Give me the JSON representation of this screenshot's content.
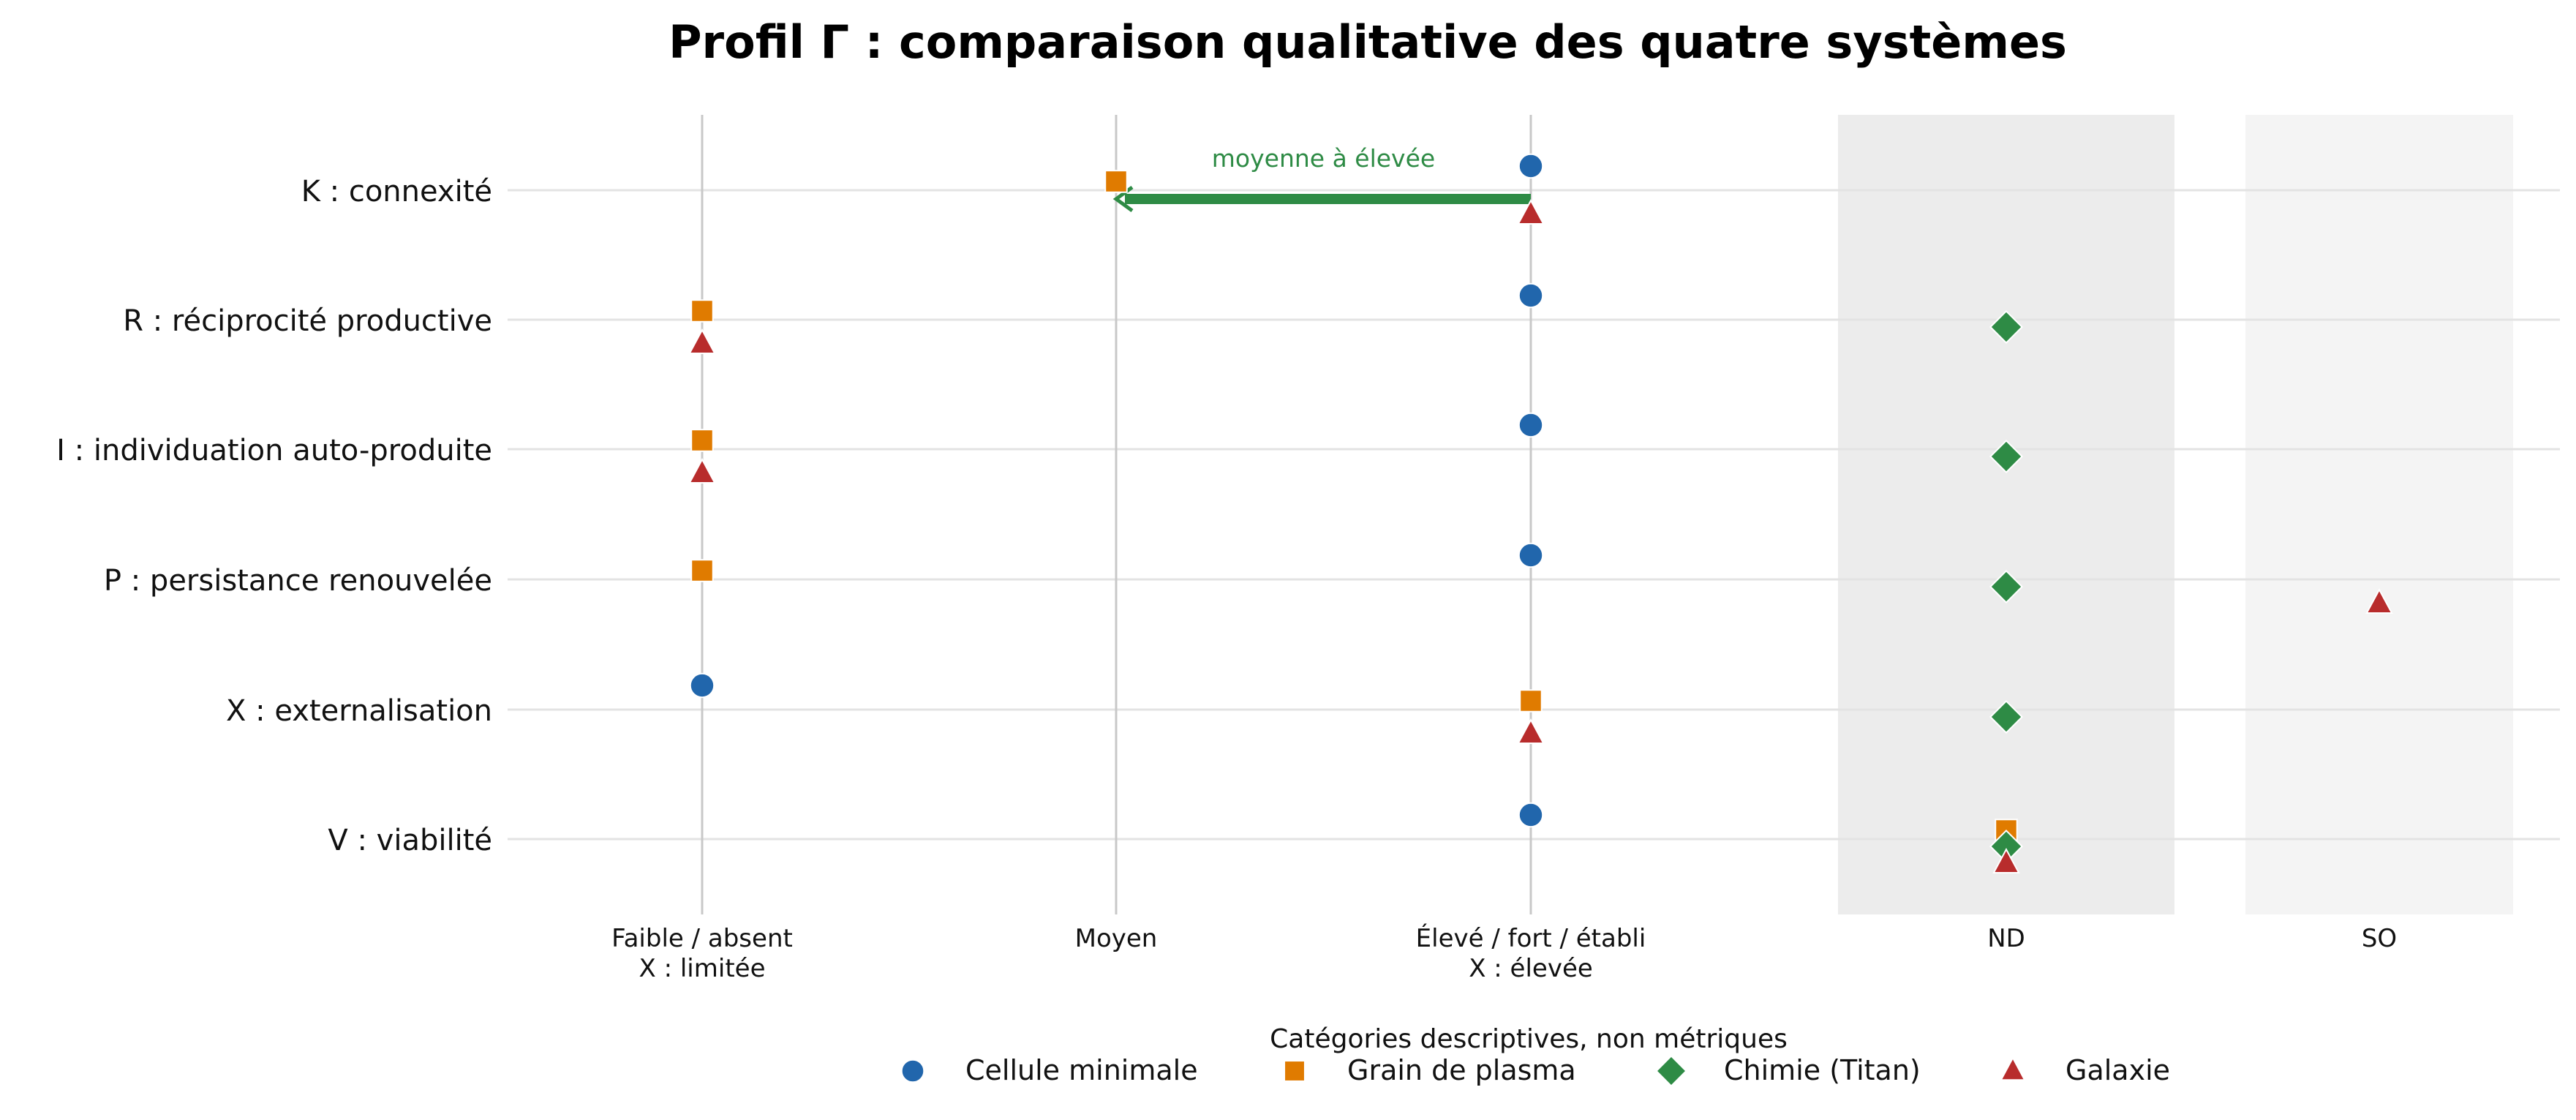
{
  "chart_data": {
    "type": "scatter",
    "title": "Profil Γ : comparaison qualitative des quatre systèmes",
    "x_categories": [
      [
        "Faible / absent",
        "X : limitée"
      ],
      [
        "Moyen"
      ],
      [
        "Élevé / fort / établi",
        "X : élevée"
      ],
      [
        "ND"
      ],
      [
        "SO"
      ]
    ],
    "y_categories": [
      "K : connexité",
      "R : réciprocité productive",
      "I : individuation auto-produite",
      "P : persistance renouvelée",
      "X : externalisation",
      "V : viabilité"
    ],
    "shaded_columns": [
      {
        "category": "ND",
        "color": "#ececec"
      },
      {
        "category": "SO",
        "color": "#f4f4f4"
      }
    ],
    "grid": true,
    "series": [
      {
        "name": "Cellule minimale",
        "marker": "circle",
        "color": "#2166ac",
        "points": [
          {
            "y": "K : connexité",
            "x": "Élevé / fort / établi"
          },
          {
            "y": "R : réciprocité productive",
            "x": "Élevé / fort / établi"
          },
          {
            "y": "I : individuation auto-produite",
            "x": "Élevé / fort / établi"
          },
          {
            "y": "P : persistance renouvelée",
            "x": "Élevé / fort / établi"
          },
          {
            "y": "X : externalisation",
            "x": "Faible / absent"
          },
          {
            "y": "V : viabilité",
            "x": "Élevé / fort / établi"
          }
        ]
      },
      {
        "name": "Grain de plasma",
        "marker": "square",
        "color": "#e07b00",
        "points": [
          {
            "y": "K : connexité",
            "x": "Moyen"
          },
          {
            "y": "R : réciprocité productive",
            "x": "Faible / absent"
          },
          {
            "y": "I : individuation auto-produite",
            "x": "Faible / absent"
          },
          {
            "y": "P : persistance renouvelée",
            "x": "Faible / absent"
          },
          {
            "y": "X : externalisation",
            "x": "Élevé / fort / établi"
          },
          {
            "y": "V : viabilité",
            "x": "ND"
          }
        ]
      },
      {
        "name": "Chimie (Titan)",
        "marker": "diamond",
        "color": "#2e8b45",
        "points": [
          {
            "y": "R : réciprocité productive",
            "x": "ND"
          },
          {
            "y": "I : individuation auto-produite",
            "x": "ND"
          },
          {
            "y": "P : persistance renouvelée",
            "x": "ND"
          },
          {
            "y": "X : externalisation",
            "x": "ND"
          },
          {
            "y": "V : viabilité",
            "x": "ND"
          }
        ]
      },
      {
        "name": "Galaxie",
        "marker": "triangle",
        "color": "#b82c2c",
        "points": [
          {
            "y": "K : connexité",
            "x": "Élevé / fort / établi"
          },
          {
            "y": "R : réciprocité productive",
            "x": "Faible / absent"
          },
          {
            "y": "I : individuation auto-produite",
            "x": "Faible / absent"
          },
          {
            "y": "P : persistance renouvelée",
            "x": "SO"
          },
          {
            "y": "X : externalisation",
            "x": "Élevé / fort / établi"
          },
          {
            "y": "V : viabilité",
            "x": "ND"
          }
        ]
      }
    ],
    "annotation": {
      "text": "moyenne à élevée",
      "y": "K : connexité",
      "x_from": "Élevé / fort / établi",
      "x_to": "Moyen",
      "color": "#2e8b45"
    },
    "legend": {
      "title": "Catégories descriptives, non métriques",
      "placement": "bottom-center"
    }
  }
}
